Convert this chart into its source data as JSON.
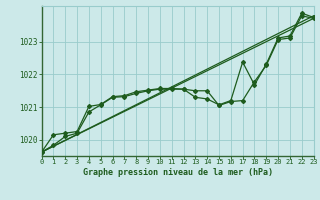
{
  "title": "Graphe pression niveau de la mer (hPa)",
  "background_color": "#cce9e9",
  "grid_color": "#99cccc",
  "line_color": "#1e5c1e",
  "xlim": [
    0,
    23
  ],
  "ylim": [
    1019.5,
    1024.1
  ],
  "yticks": [
    1020,
    1021,
    1022,
    1023
  ],
  "xticks": [
    0,
    1,
    2,
    3,
    4,
    5,
    6,
    7,
    8,
    9,
    10,
    11,
    12,
    13,
    14,
    15,
    16,
    17,
    18,
    19,
    20,
    21,
    22,
    23
  ],
  "series1_x": [
    0,
    1,
    2,
    3,
    4,
    5,
    6,
    7,
    8,
    9,
    10,
    11,
    12,
    13,
    14,
    15,
    16,
    17,
    18,
    19,
    20,
    21,
    22,
    23
  ],
  "series1_y": [
    1019.62,
    1019.83,
    1020.1,
    1020.2,
    1020.85,
    1021.07,
    1021.3,
    1021.32,
    1021.42,
    1021.5,
    1021.55,
    1021.55,
    1021.55,
    1021.5,
    1021.5,
    1021.05,
    1021.17,
    1021.2,
    1021.78,
    1022.28,
    1023.07,
    1023.12,
    1023.8,
    1023.72
  ],
  "series2_x": [
    0,
    1,
    2,
    3,
    4,
    5,
    6,
    7,
    8,
    9,
    10,
    11,
    12,
    13,
    14,
    15,
    16,
    17,
    18,
    19,
    20,
    21,
    22,
    23
  ],
  "series2_y": [
    1019.62,
    1020.15,
    1020.2,
    1020.25,
    1021.02,
    1021.08,
    1021.32,
    1021.35,
    1021.47,
    1021.52,
    1021.57,
    1021.57,
    1021.55,
    1021.3,
    1021.25,
    1021.07,
    1021.2,
    1022.38,
    1021.68,
    1022.32,
    1023.12,
    1023.18,
    1023.88,
    1023.75
  ],
  "trend1_x": [
    0,
    23
  ],
  "trend1_y": [
    1019.62,
    1023.72
  ],
  "trend2_x": [
    0,
    23
  ],
  "trend2_y": [
    1019.62,
    1023.8
  ]
}
